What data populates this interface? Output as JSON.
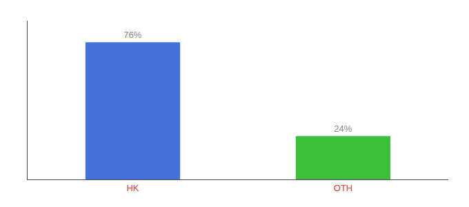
{
  "chart_data": {
    "type": "bar",
    "categories": [
      "HK",
      "OTH"
    ],
    "values": [
      76,
      24
    ],
    "value_labels": [
      "76%",
      "24%"
    ],
    "colors": [
      "#4472db",
      "#3dbf3d"
    ],
    "ylim": [
      0,
      88
    ],
    "data_labels": true,
    "tick_labels": "x",
    "grid": false
  }
}
